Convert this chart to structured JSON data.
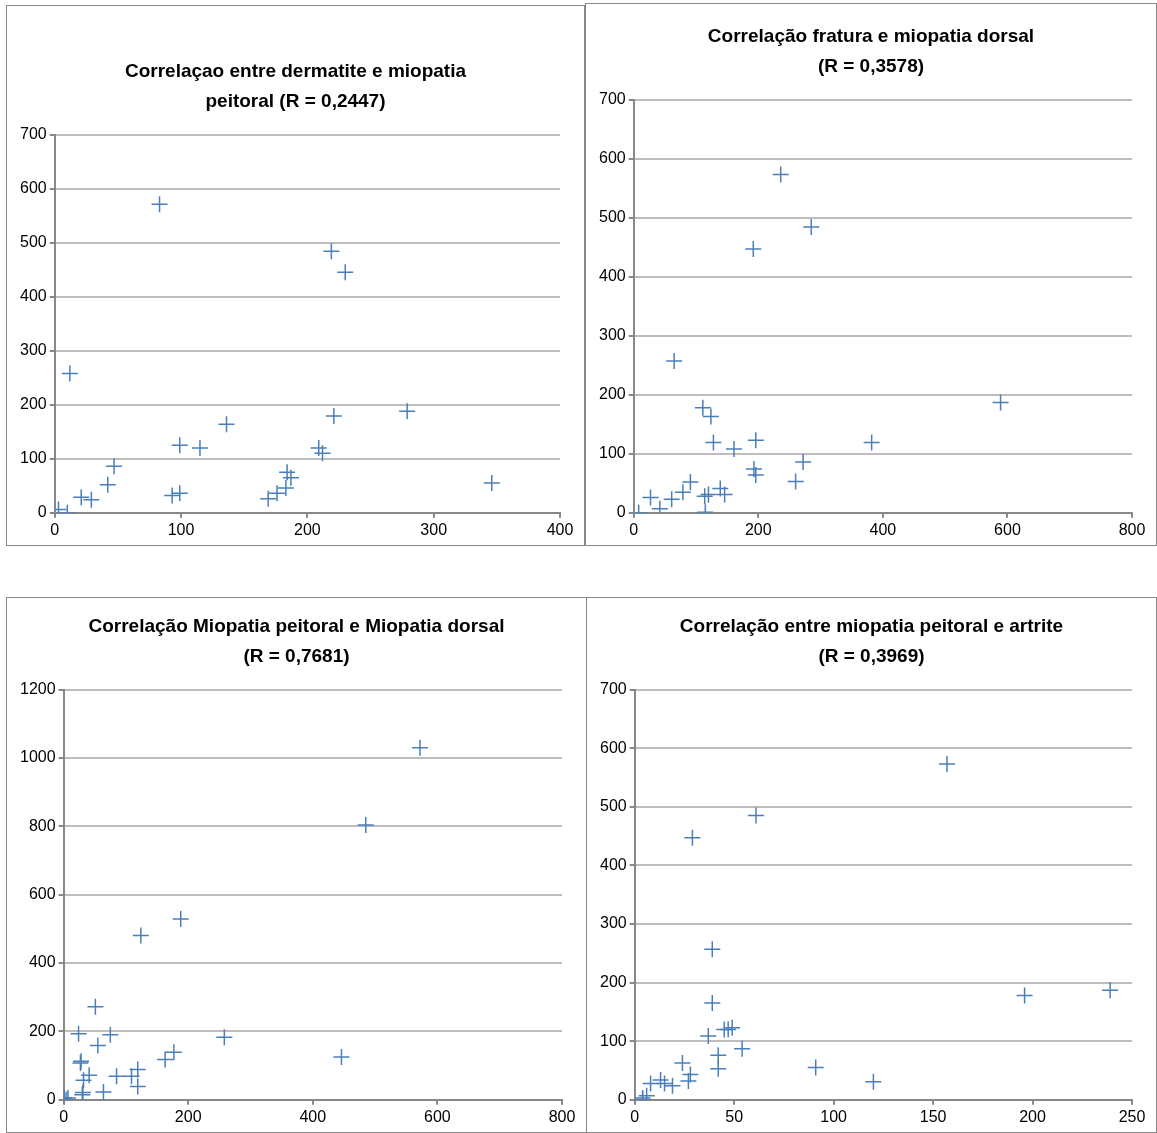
{
  "chart_data": [
    {
      "type": "scatter",
      "title": "Correlaçao entre dermatite e miopatia peitoral (R = 0,2447)",
      "marker": "cross",
      "grid": "y",
      "legend": false,
      "xlim": [
        0,
        400
      ],
      "xticks": [
        0,
        100,
        200,
        300,
        400
      ],
      "ylim": [
        0,
        700
      ],
      "yticks": [
        0,
        100,
        200,
        300,
        400,
        500,
        600,
        700
      ],
      "series": [
        {
          "color": "#4a7ebb",
          "x": [
            3,
            10,
            12,
            21,
            29,
            42,
            47,
            83,
            93,
            99,
            99,
            115,
            136,
            169,
            176,
            183,
            184,
            187,
            209,
            212,
            219,
            221,
            230,
            279,
            346
          ],
          "values": [
            6,
            0,
            258,
            29,
            24,
            52,
            86,
            571,
            32,
            36,
            125,
            120,
            164,
            26,
            36,
            46,
            75,
            65,
            120,
            110,
            484,
            179,
            445,
            188,
            55
          ]
        }
      ]
    },
    {
      "type": "scatter",
      "title": "Correlação fratura e miopatia dorsal (R = 0,3578)",
      "marker": "cross",
      "grid": "y",
      "legend": false,
      "xlim": [
        0,
        800
      ],
      "xticks": [
        0,
        200,
        400,
        600,
        800
      ],
      "ylim": [
        0,
        700
      ],
      "yticks": [
        0,
        100,
        200,
        300,
        400,
        500,
        600,
        700
      ],
      "series": [
        {
          "color": "#4a7ebb",
          "x": [
            8,
            27,
            42,
            61,
            79,
            91,
            65,
            111,
            124,
            128,
            114,
            120,
            115,
            139,
            146,
            161,
            192,
            236,
            285,
            196,
            193,
            196,
            260,
            272,
            382,
            589
          ],
          "values": [
            0,
            26,
            7,
            23,
            35,
            52,
            257,
            178,
            163,
            119,
            28,
            31,
            1,
            41,
            31,
            108,
            447,
            573,
            484,
            123,
            74,
            64,
            53,
            86,
            119,
            187
          ]
        }
      ]
    },
    {
      "type": "scatter",
      "title": "Correlação Miopatia peitoral e Miopatia dorsal (R = 0,7681)",
      "marker": "cross",
      "grid": "y",
      "legend": false,
      "xlim": [
        0,
        800
      ],
      "xticks": [
        0,
        200,
        400,
        600,
        800
      ],
      "ylim": [
        0,
        1200
      ],
      "yticks": [
        0,
        200,
        400,
        600,
        800,
        1000,
        1200
      ],
      "series": [
        {
          "color": "#4a7ebb",
          "x": [
            572,
            485,
            188,
            124,
            51,
            24,
            75,
            55,
            28,
            27,
            41,
            32,
            31,
            30,
            64,
            85,
            109,
            119,
            119,
            163,
            177,
            258,
            446,
            1,
            7,
            4
          ],
          "values": [
            1030,
            804,
            529,
            481,
            272,
            193,
            190,
            159,
            113,
            108,
            72,
            57,
            21,
            15,
            23,
            69,
            69,
            89,
            39,
            118,
            139,
            183,
            125,
            5,
            5,
            0
          ]
        }
      ]
    },
    {
      "type": "scatter",
      "title": "Correlação entre miopatia peitoral e artrite (R = 0,3969)",
      "marker": "cross",
      "grid": "y",
      "legend": false,
      "xlim": [
        0,
        250
      ],
      "xticks": [
        0,
        50,
        100,
        150,
        200,
        250
      ],
      "ylim": [
        0,
        700
      ],
      "yticks": [
        0,
        100,
        200,
        300,
        400,
        500,
        600,
        700
      ],
      "series": [
        {
          "color": "#4a7ebb",
          "x": [
            157,
            61,
            29,
            39,
            39,
            196,
            239,
            37,
            45,
            47,
            49,
            54,
            42,
            42,
            91,
            120,
            24,
            28,
            27,
            8,
            13,
            15,
            19,
            6,
            4,
            4
          ],
          "values": [
            573,
            485,
            447,
            257,
            165,
            178,
            187,
            109,
            120,
            120,
            123,
            87,
            76,
            53,
            55,
            31,
            63,
            43,
            32,
            28,
            34,
            28,
            24,
            7,
            3,
            0
          ]
        }
      ]
    }
  ]
}
